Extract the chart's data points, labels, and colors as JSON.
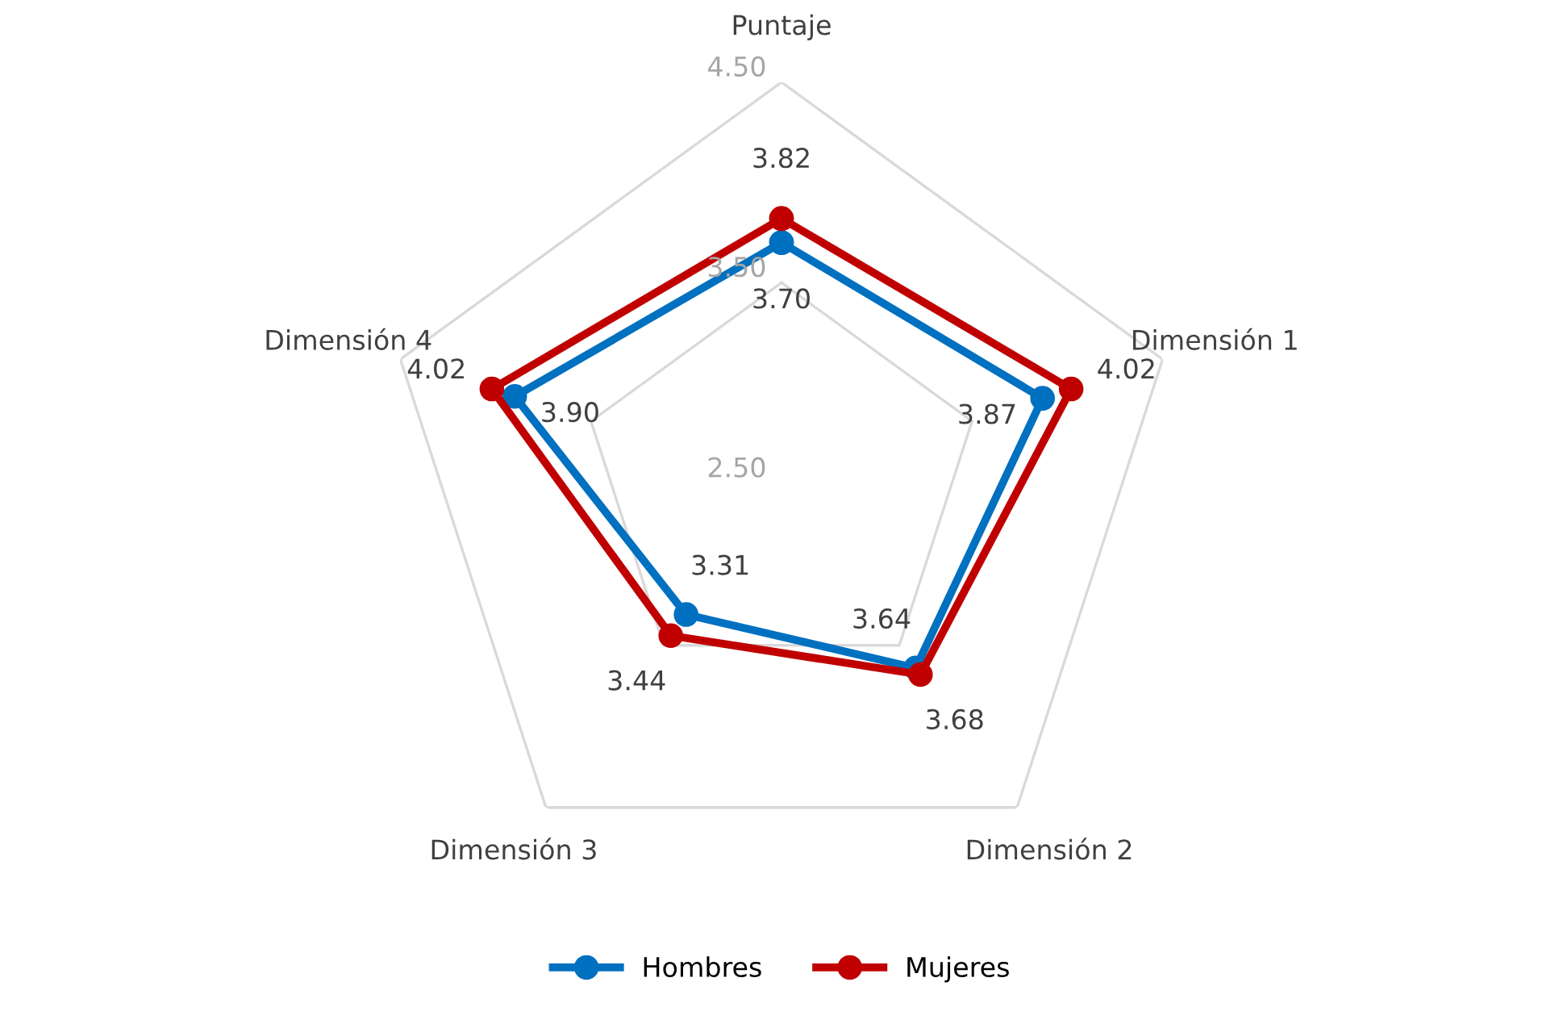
{
  "chart_data": {
    "type": "radar",
    "categories": [
      "Puntaje",
      "Dimensión 1",
      "Dimensión 2",
      "Dimensión 3",
      "Dimensión 4"
    ],
    "series": [
      {
        "name": "Hombres",
        "color": "#0070c0",
        "values": [
          3.7,
          3.87,
          3.64,
          3.31,
          3.9
        ],
        "value_labels": [
          "3.70",
          "3.87",
          "3.64",
          "3.31",
          "3.90"
        ]
      },
      {
        "name": "Mujeres",
        "color": "#c00000",
        "values": [
          3.82,
          4.02,
          3.68,
          3.44,
          4.02
        ],
        "value_labels": [
          "3.82",
          "4.02",
          "3.68",
          "3.44",
          "4.02"
        ]
      }
    ],
    "ylim": [
      2.5,
      4.5
    ],
    "yticks": [
      {
        "value": 2.5,
        "label": "2.50"
      },
      {
        "value": 3.5,
        "label": "3.50"
      },
      {
        "value": 4.5,
        "label": "4.50"
      }
    ],
    "grid": true,
    "legend": "bottom",
    "marker": "circle",
    "line_style": "solid"
  }
}
